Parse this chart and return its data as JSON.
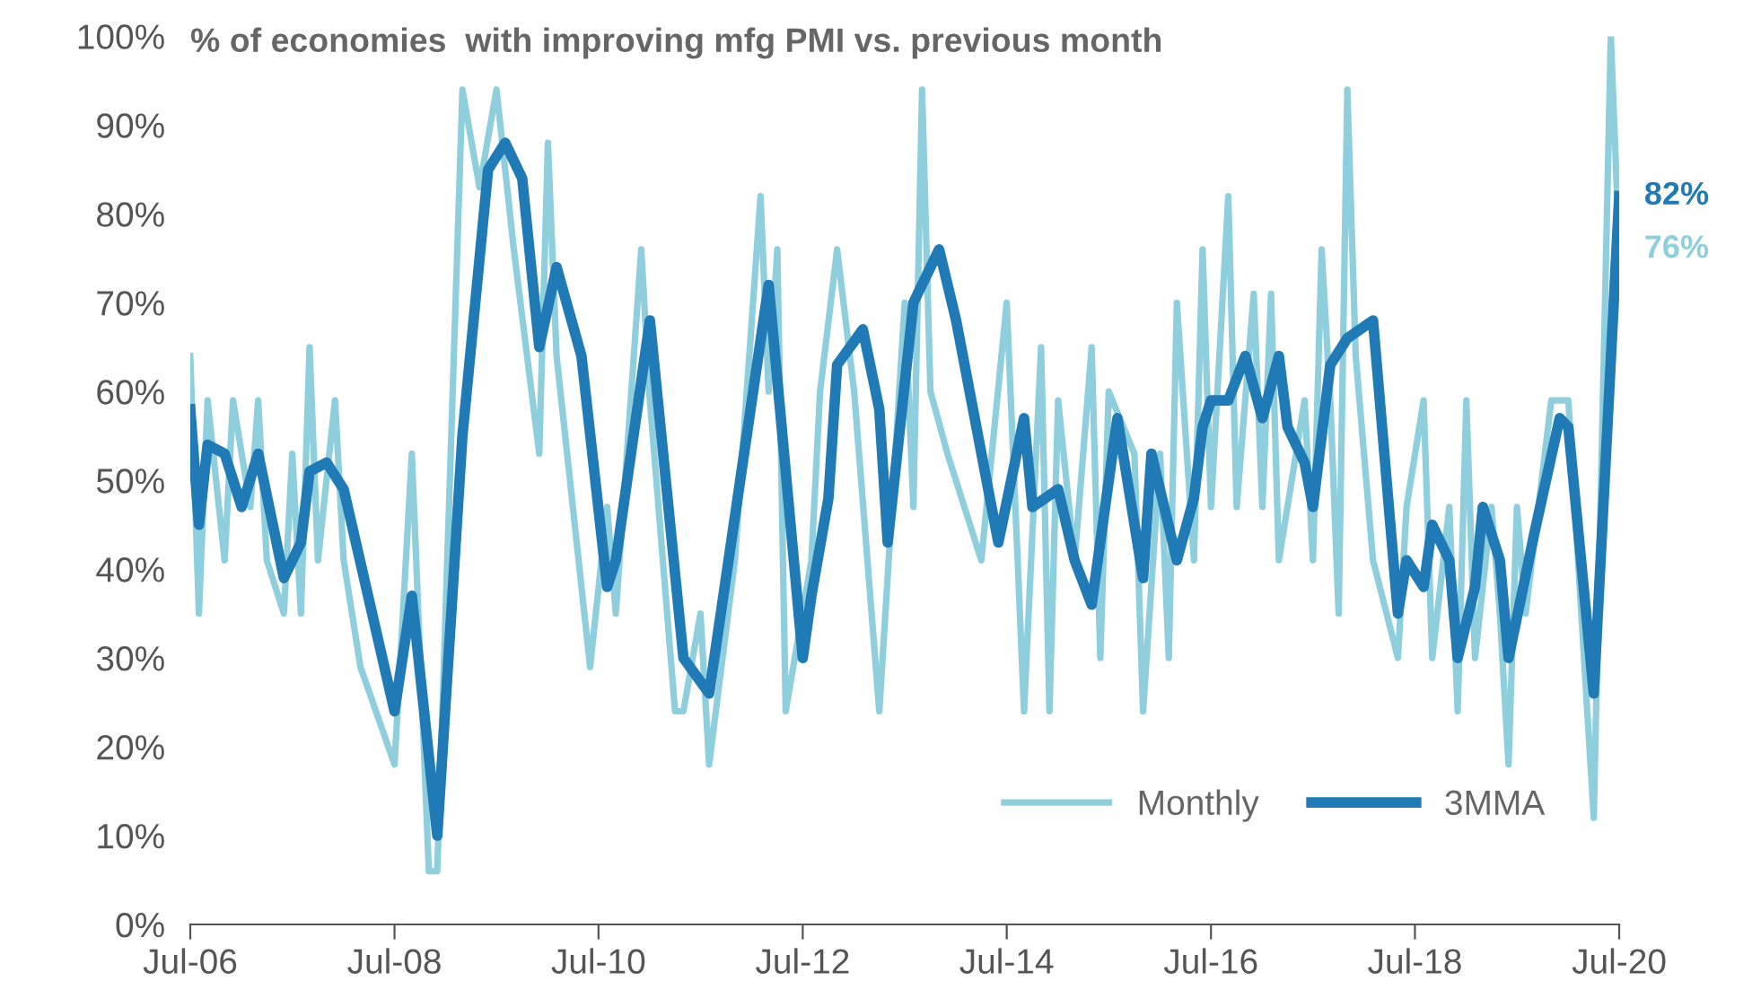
{
  "chart_data": {
    "type": "line",
    "title": "% of economies  with improving mfg PMI vs. previous month",
    "xlim": [
      "2006-07",
      "2020-07"
    ],
    "xticks": [
      {
        "value": "2006-07",
        "label": "Jul-06"
      },
      {
        "value": "2008-07",
        "label": "Jul-08"
      },
      {
        "value": "2010-07",
        "label": "Jul-10"
      },
      {
        "value": "2012-07",
        "label": "Jul-12"
      },
      {
        "value": "2014-07",
        "label": "Jul-14"
      },
      {
        "value": "2016-07",
        "label": "Jul-16"
      },
      {
        "value": "2018-07",
        "label": "Jul-18"
      },
      {
        "value": "2020-07",
        "label": "Jul-20"
      }
    ],
    "ylim": [
      0,
      100
    ],
    "yticks": [
      {
        "value": 0,
        "label": "0%"
      },
      {
        "value": 10,
        "label": "10%"
      },
      {
        "value": 20,
        "label": "20%"
      },
      {
        "value": 30,
        "label": "30%"
      },
      {
        "value": 40,
        "label": "40%"
      },
      {
        "value": 50,
        "label": "50%"
      },
      {
        "value": 60,
        "label": "60%"
      },
      {
        "value": 70,
        "label": "70%"
      },
      {
        "value": 80,
        "label": "80%"
      },
      {
        "value": 90,
        "label": "90%"
      },
      {
        "value": 100,
        "label": "100%"
      }
    ],
    "grid": false,
    "legend": "bottom right",
    "line_style": "solid",
    "marker": "none",
    "series": [
      {
        "name": "Monthly",
        "color": "#8fcfdd",
        "x": [
          "2006-07",
          "2006-08",
          "2006-09",
          "2006-11",
          "2006-12",
          "2007-02",
          "2007-03",
          "2007-04",
          "2007-06",
          "2007-07",
          "2007-08",
          "2007-09",
          "2007-10",
          "2007-12",
          "2008-01",
          "2008-03",
          "2008-07",
          "2008-09",
          "2008-11",
          "2008-12",
          "2009-03",
          "2009-05",
          "2009-07",
          "2009-09",
          "2009-12",
          "2010-01",
          "2010-02",
          "2010-06",
          "2010-08",
          "2010-09",
          "2010-12",
          "2011-01",
          "2011-04",
          "2011-05",
          "2011-07",
          "2011-08",
          "2011-11",
          "2012-02",
          "2012-03",
          "2012-04",
          "2012-05",
          "2012-08",
          "2012-09",
          "2012-11",
          "2013-01",
          "2013-04",
          "2013-07",
          "2013-08",
          "2013-09",
          "2013-10",
          "2013-12",
          "2014-04",
          "2014-07",
          "2014-09",
          "2014-11",
          "2014-12",
          "2015-01",
          "2015-03",
          "2015-05",
          "2015-06",
          "2015-07",
          "2015-10",
          "2015-11",
          "2016-01",
          "2016-02",
          "2016-03",
          "2016-05",
          "2016-06",
          "2016-07",
          "2016-09",
          "2016-10",
          "2016-12",
          "2017-01",
          "2017-02",
          "2017-03",
          "2017-06",
          "2017-07",
          "2017-08",
          "2017-09",
          "2017-10",
          "2017-11",
          "2017-12",
          "2018-02",
          "2018-05",
          "2018-06",
          "2018-08",
          "2018-09",
          "2018-11",
          "2018-12",
          "2019-01",
          "2019-02",
          "2019-04",
          "2019-05",
          "2019-06",
          "2019-07",
          "2019-08",
          "2019-11",
          "2020-01",
          "2020-04",
          "2020-06",
          "2020-07"
        ],
        "values": [
          64,
          35,
          59,
          41,
          59,
          47,
          59,
          41,
          35,
          53,
          35,
          65,
          41,
          59,
          41,
          29,
          18,
          53,
          6,
          6,
          94,
          83,
          94,
          76,
          53,
          88,
          64,
          29,
          47,
          35,
          76,
          59,
          24,
          24,
          35,
          18,
          41,
          82,
          60,
          76,
          24,
          41,
          60,
          76,
          60,
          24,
          70,
          47,
          94,
          60,
          53,
          41,
          70,
          24,
          65,
          24,
          59,
          41,
          65,
          30,
          60,
          53,
          24,
          53,
          30,
          70,
          41,
          76,
          47,
          82,
          47,
          71,
          47,
          71,
          41,
          59,
          41,
          76,
          59,
          35,
          94,
          64,
          41,
          30,
          47,
          59,
          30,
          47,
          24,
          59,
          30,
          47,
          35,
          18,
          47,
          35,
          59,
          59,
          12,
          100,
          76
        ],
        "value_labels": [
          null,
          null,
          null,
          null,
          null,
          null,
          null,
          null,
          null,
          null,
          null,
          null,
          null,
          null,
          null,
          null,
          null,
          null,
          null,
          null,
          null,
          null,
          null,
          null,
          null,
          null,
          null,
          null,
          null,
          null,
          null,
          null,
          null,
          null,
          null,
          null,
          null,
          null,
          null,
          null,
          null,
          null,
          null,
          null,
          null,
          null,
          null,
          null,
          null,
          null,
          null,
          null,
          null,
          null,
          null,
          null,
          null,
          null,
          null,
          null,
          null,
          null,
          null,
          null,
          null,
          null,
          null,
          null,
          null,
          null,
          null,
          null,
          null,
          null,
          null,
          null,
          null,
          null,
          null,
          null,
          null,
          null,
          null,
          null,
          null,
          null,
          null,
          null,
          null,
          null,
          null,
          null,
          null,
          null,
          null,
          null,
          null,
          null,
          null,
          null,
          "76%"
        ]
      },
      {
        "name": "3MMA",
        "color": "#1f7ab5",
        "x": [
          "2006-07",
          "2006-08",
          "2006-09",
          "2006-11",
          "2007-01",
          "2007-03",
          "2007-06",
          "2007-08",
          "2007-09",
          "2007-11",
          "2008-01",
          "2008-07",
          "2008-09",
          "2008-12",
          "2009-03",
          "2009-06",
          "2009-08",
          "2009-10",
          "2009-12",
          "2010-02",
          "2010-05",
          "2010-08",
          "2010-09",
          "2011-01",
          "2011-05",
          "2011-08",
          "2012-03",
          "2012-07",
          "2012-08",
          "2012-10",
          "2012-11",
          "2013-02",
          "2013-04",
          "2013-05",
          "2013-08",
          "2013-11",
          "2014-01",
          "2014-06",
          "2014-09",
          "2014-10",
          "2015-01",
          "2015-03",
          "2015-05",
          "2015-08",
          "2015-11",
          "2015-12",
          "2016-03",
          "2016-05",
          "2016-06",
          "2016-07",
          "2016-09",
          "2016-11",
          "2017-01",
          "2017-03",
          "2017-04",
          "2017-06",
          "2017-07",
          "2017-09",
          "2017-11",
          "2018-02",
          "2018-05",
          "2018-06",
          "2018-08",
          "2018-09",
          "2018-11",
          "2018-12",
          "2019-02",
          "2019-03",
          "2019-05",
          "2019-06",
          "2019-09",
          "2019-12",
          "2020-01",
          "2020-04",
          "2020-07"
        ],
        "values": [
          58,
          45,
          54,
          53,
          47,
          53,
          39,
          43,
          51,
          52,
          49,
          24,
          37,
          10,
          55,
          85,
          88,
          84,
          65,
          74,
          64,
          38,
          41,
          68,
          30,
          26,
          72,
          30,
          37,
          48,
          63,
          67,
          58,
          43,
          70,
          76,
          68,
          43,
          57,
          47,
          49,
          41,
          36,
          57,
          39,
          53,
          41,
          48,
          56,
          59,
          59,
          64,
          57,
          64,
          56,
          52,
          47,
          63,
          66,
          68,
          35,
          41,
          38,
          45,
          41,
          30,
          38,
          47,
          41,
          30,
          44,
          57,
          56,
          26,
          82
        ],
        "value_labels": [
          null,
          null,
          null,
          null,
          null,
          null,
          null,
          null,
          null,
          null,
          null,
          null,
          null,
          null,
          null,
          null,
          null,
          null,
          null,
          null,
          null,
          null,
          null,
          null,
          null,
          null,
          null,
          null,
          null,
          null,
          null,
          null,
          null,
          null,
          null,
          null,
          null,
          null,
          null,
          null,
          null,
          null,
          null,
          null,
          null,
          null,
          null,
          null,
          null,
          null,
          null,
          null,
          null,
          null,
          null,
          null,
          null,
          null,
          null,
          null,
          null,
          null,
          null,
          null,
          null,
          null,
          null,
          null,
          null,
          null,
          null,
          null,
          null,
          null,
          "82%"
        ]
      }
    ]
  }
}
